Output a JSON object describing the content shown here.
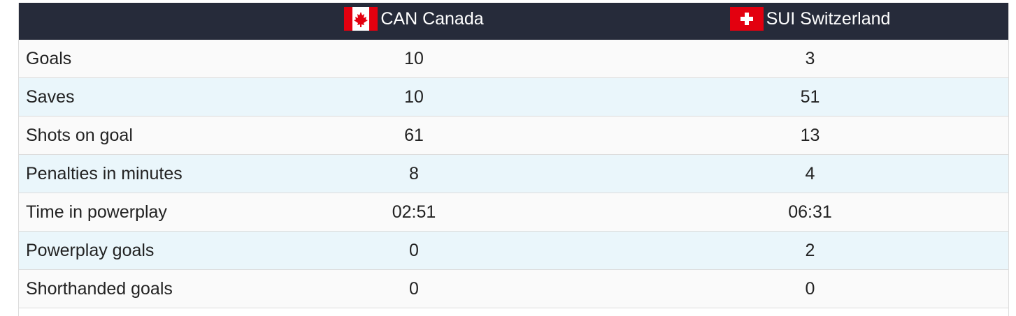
{
  "table": {
    "header": [
      "",
      "CAN Canada",
      "SUI Switzerland"
    ],
    "rows": [
      [
        "Goals",
        10,
        3
      ],
      [
        "Saves",
        10,
        51
      ],
      [
        "Shots on goal",
        61,
        13
      ],
      [
        "Penalties in minutes",
        8,
        4
      ],
      [
        "Time in powerplay",
        "02:51",
        "06:31"
      ],
      [
        "Powerplay goals",
        0,
        2
      ],
      [
        "Shorthanded goals",
        0,
        0
      ]
    ]
  }
}
